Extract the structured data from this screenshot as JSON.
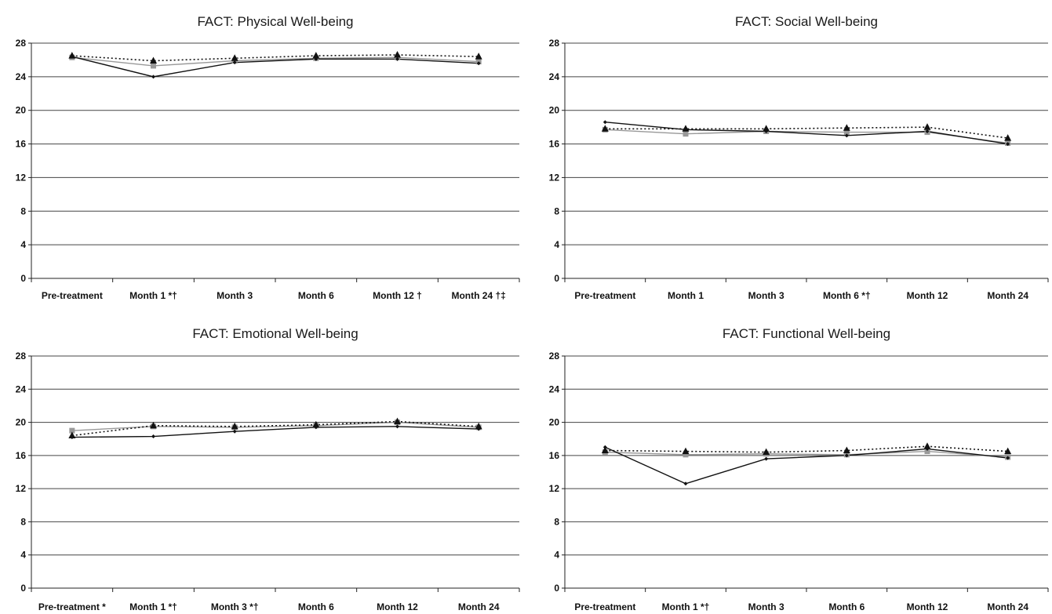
{
  "chart_data": [
    {
      "type": "line",
      "title": "FACT: Physical Well-being",
      "xlabel": "",
      "ylabel": "",
      "ylim": [
        0,
        28
      ],
      "yticks": [
        "0",
        "4",
        "8",
        "12",
        "16",
        "20",
        "24",
        "28"
      ],
      "categories": [
        "Pre-treatment",
        "Month 1 *†",
        "Month 3",
        "Month 6",
        "Month 12 †",
        "Month 24 †‡"
      ],
      "grid": true,
      "legend": "none",
      "series": [
        {
          "marker": "diamond",
          "style": "solid",
          "color": "#111111",
          "values": [
            26.4,
            24.0,
            25.7,
            26.1,
            26.1,
            25.6
          ]
        },
        {
          "marker": "square",
          "style": "solid",
          "color": "#999999",
          "values": [
            26.3,
            25.3,
            25.9,
            26.2,
            26.3,
            25.8
          ]
        },
        {
          "marker": "triangle",
          "style": "dotted",
          "color": "#111111",
          "values": [
            26.5,
            25.9,
            26.2,
            26.5,
            26.6,
            26.4
          ]
        }
      ]
    },
    {
      "type": "line",
      "title": "FACT: Social Well-being",
      "xlabel": "",
      "ylabel": "",
      "ylim": [
        0,
        28
      ],
      "yticks": [
        "0",
        "4",
        "8",
        "12",
        "16",
        "20",
        "24",
        "28"
      ],
      "categories": [
        "Pre-treatment",
        "Month 1",
        "Month 3",
        "Month 6 *†",
        "Month 12",
        "Month 24"
      ],
      "grid": true,
      "legend": "none",
      "series": [
        {
          "marker": "diamond",
          "style": "solid",
          "color": "#111111",
          "values": [
            18.6,
            17.7,
            17.5,
            17.0,
            17.5,
            16.0
          ]
        },
        {
          "marker": "square",
          "style": "solid",
          "color": "#999999",
          "values": [
            17.7,
            17.2,
            17.5,
            17.4,
            17.4,
            16.1
          ]
        },
        {
          "marker": "triangle",
          "style": "dotted",
          "color": "#111111",
          "values": [
            17.8,
            17.8,
            17.8,
            17.9,
            18.0,
            16.7
          ]
        }
      ]
    },
    {
      "type": "line",
      "title": "FACT: Emotional Well-being",
      "xlabel": "",
      "ylabel": "",
      "ylim": [
        0,
        28
      ],
      "yticks": [
        "0",
        "4",
        "8",
        "12",
        "16",
        "20",
        "24",
        "28"
      ],
      "categories": [
        "Pre-treatment *",
        "Month 1 *†",
        "Month 3 *†",
        "Month 6",
        "Month 12",
        "Month 24"
      ],
      "grid": true,
      "legend": "none",
      "series": [
        {
          "marker": "diamond",
          "style": "solid",
          "color": "#111111",
          "values": [
            18.2,
            18.3,
            18.9,
            19.4,
            19.5,
            19.2
          ]
        },
        {
          "marker": "square",
          "style": "solid",
          "color": "#999999",
          "values": [
            19.0,
            19.5,
            19.4,
            19.6,
            20.0,
            19.4
          ]
        },
        {
          "marker": "triangle",
          "style": "dotted",
          "color": "#111111",
          "values": [
            18.4,
            19.6,
            19.5,
            19.7,
            20.1,
            19.5
          ]
        }
      ]
    },
    {
      "type": "line",
      "title": "FACT: Functional Well-being",
      "xlabel": "",
      "ylabel": "",
      "ylim": [
        0,
        28
      ],
      "yticks": [
        "0",
        "4",
        "8",
        "12",
        "16",
        "20",
        "24",
        "28"
      ],
      "categories": [
        "Pre-treatment",
        "Month 1 *†",
        "Month 3",
        "Month 6",
        "Month 12",
        "Month 24"
      ],
      "grid": true,
      "legend": "none",
      "series": [
        {
          "marker": "diamond",
          "style": "solid",
          "color": "#111111",
          "values": [
            17.0,
            12.6,
            15.6,
            16.0,
            16.8,
            15.7
          ]
        },
        {
          "marker": "square",
          "style": "solid",
          "color": "#999999",
          "values": [
            16.4,
            16.1,
            16.2,
            16.1,
            16.5,
            15.8
          ]
        },
        {
          "marker": "triangle",
          "style": "dotted",
          "color": "#111111",
          "values": [
            16.6,
            16.5,
            16.4,
            16.6,
            17.1,
            16.5
          ]
        }
      ]
    }
  ]
}
